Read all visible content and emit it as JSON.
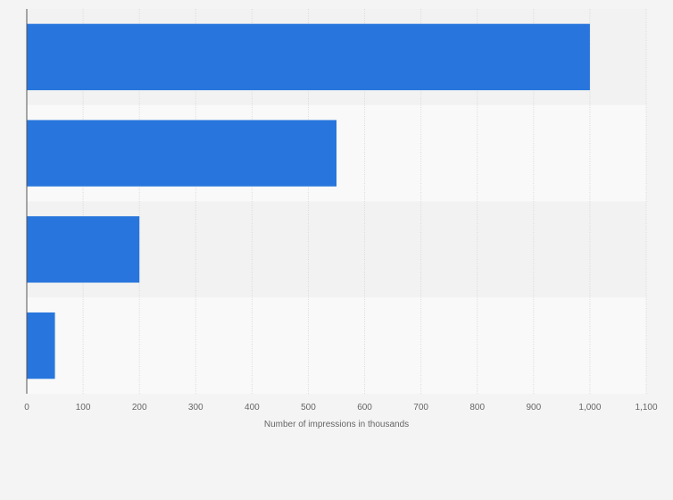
{
  "chart_data": {
    "type": "bar",
    "orientation": "horizontal",
    "categories": [
      "",
      "",
      "",
      ""
    ],
    "values": [
      1000,
      550,
      200,
      50
    ],
    "title": "",
    "xlabel": "Number of impressions in thousands",
    "ylabel": "",
    "xlim": [
      0,
      1100
    ],
    "xticks": [
      0,
      100,
      200,
      300,
      400,
      500,
      600,
      700,
      800,
      900,
      1000,
      1100
    ],
    "xtick_labels": [
      "0",
      "100",
      "200",
      "300",
      "400",
      "500",
      "600",
      "700",
      "800",
      "900",
      "1,000",
      "1,100"
    ],
    "grid": true,
    "legend": "none",
    "colors": {
      "bar": "#2876dd",
      "band_dark": "#f2f2f2",
      "band_light": "#f9f9f9",
      "page_bg": "#f4f4f4",
      "grid": "#d9d9d9",
      "axis": "#555555",
      "text": "#666666"
    }
  }
}
